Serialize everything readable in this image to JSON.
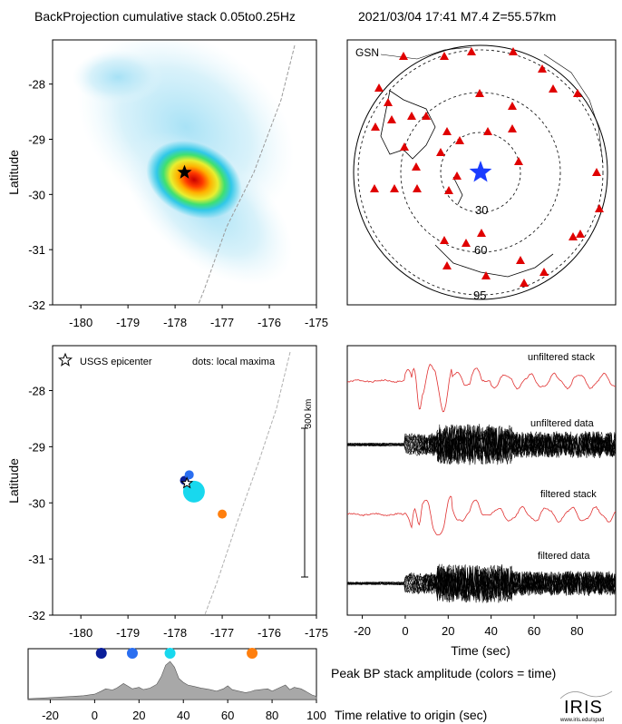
{
  "header": {
    "title": "BackProjection cumulative stack 0.05to0.25Hz",
    "event": "2021/03/04 17:41   M7.4   Z=55.57km"
  },
  "colors": {
    "station": "#e00000",
    "epicenter_map": "#1a3cff",
    "trace_red": "#e03030",
    "trace_black": "#000000",
    "fault": "#9a9a9a",
    "amp_fill": "#a8a8a8"
  },
  "chart_data": [
    {
      "type": "heatmap",
      "panel": "top-left",
      "ylabel": "Latitude",
      "xlim": [
        -180.6,
        -175
      ],
      "ylim": [
        -32,
        -27.2
      ],
      "xticks": [
        "-180",
        "-179",
        "-178",
        "-177",
        "-176",
        "-175"
      ],
      "yticks": [
        "-28",
        "-29",
        "-30",
        "-31",
        "-32"
      ],
      "hotspot": {
        "lon": -177.6,
        "lat": -29.7
      },
      "epicenter": {
        "lon": -177.8,
        "lat": -29.6,
        "marker": "star"
      }
    },
    {
      "type": "scatter",
      "panel": "top-right",
      "label": "GSN",
      "ring_labels": [
        "30",
        "60",
        "95"
      ],
      "center_marker": "star"
    },
    {
      "type": "scatter",
      "panel": "mid-left",
      "ylabel": "Latitude",
      "xlim": [
        -180.6,
        -175
      ],
      "ylim": [
        -32,
        -27.2
      ],
      "xticks": [
        "-180",
        "-179",
        "-178",
        "-177",
        "-176",
        "-175"
      ],
      "yticks": [
        "-28",
        "-29",
        "-30",
        "-31",
        "-32"
      ],
      "legend_epicenter": "USGS epicenter",
      "legend_dots": "dots: local maxima",
      "scale_label": "300 km",
      "maxima": [
        {
          "lon": -177.8,
          "lat": -29.6,
          "time": 3,
          "color": "#0a1e9a",
          "size": 5
        },
        {
          "lon": -177.7,
          "lat": -29.5,
          "time": 17,
          "color": "#2a6ef0",
          "size": 5
        },
        {
          "lon": -177.6,
          "lat": -29.8,
          "time": 34,
          "color": "#18d8ee",
          "size": 12
        },
        {
          "lon": -177.0,
          "lat": -30.2,
          "time": 71,
          "color": "#ff7f0e",
          "size": 5
        }
      ]
    },
    {
      "type": "line",
      "panel": "mid-right",
      "xlabel": "Time (sec)",
      "xlim": [
        -27,
        98
      ],
      "xticks": [
        "-20",
        "0",
        "20",
        "40",
        "60",
        "80"
      ],
      "series": [
        {
          "name": "unfiltered stack",
          "color": "#e03030"
        },
        {
          "name": "unfiltered data",
          "color": "#000000"
        },
        {
          "name": "filtered stack",
          "color": "#e03030"
        },
        {
          "name": "filtered data",
          "color": "#000000"
        }
      ]
    },
    {
      "type": "area",
      "panel": "bottom",
      "xlabel": "Time relative to origin (sec)",
      "title_right": "Peak BP stack amplitude (colors = time)",
      "xlim": [
        -30,
        100
      ],
      "xticks": [
        "-20",
        "0",
        "20",
        "40",
        "60",
        "80",
        "100"
      ],
      "x": [
        -30,
        -20,
        -10,
        -5,
        0,
        3,
        5,
        8,
        10,
        13,
        15,
        17,
        20,
        22,
        25,
        28,
        30,
        32,
        34,
        36,
        38,
        40,
        42,
        45,
        48,
        50,
        52,
        55,
        58,
        60,
        62,
        65,
        68,
        70,
        72,
        75,
        78,
        80,
        83,
        86,
        88,
        90,
        93,
        95,
        98,
        100
      ],
      "y": [
        0.02,
        0.05,
        0.08,
        0.1,
        0.14,
        0.22,
        0.28,
        0.25,
        0.3,
        0.42,
        0.35,
        0.28,
        0.32,
        0.26,
        0.3,
        0.4,
        0.6,
        0.9,
        1.0,
        0.85,
        0.55,
        0.45,
        0.38,
        0.34,
        0.3,
        0.28,
        0.26,
        0.22,
        0.28,
        0.36,
        0.26,
        0.22,
        0.18,
        0.2,
        0.24,
        0.26,
        0.28,
        0.22,
        0.3,
        0.38,
        0.26,
        0.32,
        0.28,
        0.22,
        0.12,
        0.08
      ],
      "peaks": [
        {
          "time": 3,
          "color": "#0a1e9a"
        },
        {
          "time": 17,
          "color": "#2a6ef0"
        },
        {
          "time": 34,
          "color": "#18d8ee"
        },
        {
          "time": 71,
          "color": "#ff7f0e"
        }
      ]
    }
  ],
  "logo": {
    "text": "IRIS",
    "url": "www.iris.edu/spud"
  }
}
